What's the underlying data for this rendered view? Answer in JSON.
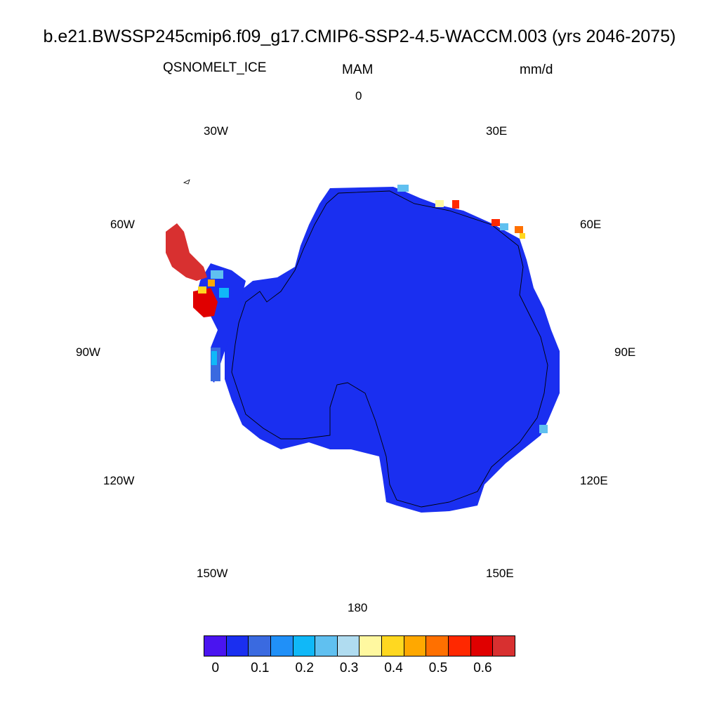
{
  "header": {
    "title": "b.e21.BWSSP245cmip6.f09_g17.CMIP6-SSP2-4.5-WACCM.003 (yrs 2046-2075)",
    "variable": "QSNOMELT_ICE",
    "season": "MAM",
    "units": "mm/d"
  },
  "longitude_labels": {
    "lon_0": "0",
    "lon_30e": "30E",
    "lon_60e": "60E",
    "lon_90e": "90E",
    "lon_120e": "120E",
    "lon_150e": "150E",
    "lon_180": "180",
    "lon_150w": "150W",
    "lon_120w": "120W",
    "lon_90w": "90W",
    "lon_60w": "60W",
    "lon_30w": "30W"
  },
  "map": {
    "projection": "south-polar stereographic",
    "region": "Antarctica",
    "dominant_value": "0",
    "land_color": "#1a2ff0",
    "coastline_color": "#000000"
  },
  "colorbar": {
    "colors": [
      "#4a14f0",
      "#1a2ff0",
      "#3a6ae0",
      "#2090f8",
      "#10b8f8",
      "#60c0f0",
      "#b0dcf0",
      "#fff8a0",
      "#ffd820",
      "#ffa800",
      "#ff7000",
      "#ff2800",
      "#e00000",
      "#d83030"
    ],
    "labels": [
      "0",
      "0.1",
      "0.2",
      "0.3",
      "0.4",
      "0.5",
      "0.6"
    ]
  }
}
